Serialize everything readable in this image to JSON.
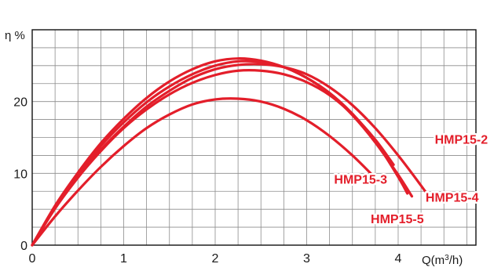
{
  "chart_data": {
    "type": "line",
    "ylabel": "η %",
    "xlabel_main": "Q(m",
    "xlabel_sup": "3",
    "xlabel_end": "/h)",
    "xlim": [
      0,
      4.85
    ],
    "ylim": [
      0,
      30
    ],
    "x_ticks": [
      0,
      1,
      2,
      3,
      4
    ],
    "y_ticks": [
      0,
      10,
      20
    ],
    "x_minor_step": 0.25,
    "y_minor_step": 2.5,
    "grid": true,
    "color": "#e31e2a",
    "series": [
      {
        "name": "HMP15-2",
        "x": [
          0,
          0.25,
          0.5,
          0.75,
          1.0,
          1.25,
          1.5,
          1.75,
          2.0,
          2.25,
          2.5,
          2.75,
          3.0,
          3.25,
          3.5,
          3.75,
          4.0,
          4.25,
          4.35
        ],
        "y": [
          0,
          5.2,
          9.5,
          13.3,
          16.5,
          19.3,
          21.5,
          23.3,
          24.5,
          25.1,
          25.2,
          24.8,
          23.8,
          22.0,
          19.5,
          16.3,
          12.5,
          8.3,
          6.5
        ]
      },
      {
        "name": "HMP15-3",
        "x": [
          0,
          0.25,
          0.5,
          0.75,
          1.0,
          1.25,
          1.5,
          1.75,
          2.0,
          2.25,
          2.5,
          2.75,
          3.0,
          3.25,
          3.5,
          3.75,
          3.95
        ],
        "y": [
          0,
          5.1,
          9.4,
          13.1,
          16.3,
          18.9,
          21.0,
          22.6,
          23.7,
          24.3,
          24.3,
          23.8,
          22.7,
          20.9,
          18.2,
          14.7,
          11.2
        ]
      },
      {
        "name": "HMP15-4",
        "x": [
          0,
          0.25,
          0.5,
          0.75,
          1.0,
          1.25,
          1.5,
          1.75,
          2.0,
          2.25,
          2.5,
          2.75,
          3.0,
          3.25,
          3.5,
          3.75,
          4.0,
          4.15
        ],
        "y": [
          0,
          5.5,
          10.1,
          14.2,
          17.6,
          20.5,
          22.8,
          24.5,
          25.6,
          26.0,
          25.7,
          24.8,
          23.3,
          21.1,
          18.1,
          14.3,
          9.8,
          6.8
        ]
      },
      {
        "name": "HMP15-5",
        "x": [
          0,
          0.25,
          0.5,
          0.75,
          1.0,
          1.25,
          1.5,
          1.75,
          2.0,
          2.25,
          2.5,
          2.75,
          3.0,
          3.25,
          3.5,
          3.75,
          4.0,
          4.1
        ],
        "y": [
          0,
          5.3,
          9.8,
          13.8,
          17.1,
          19.9,
          22.1,
          23.8,
          25.0,
          25.6,
          25.5,
          24.8,
          23.3,
          21.2,
          18.3,
          14.5,
          9.5,
          7.2
        ]
      },
      {
        "name": "",
        "x": [
          0,
          0.25,
          0.5,
          0.75,
          1.0,
          1.25,
          1.5,
          1.75,
          2.0,
          2.25,
          2.5,
          2.75,
          3.0,
          3.25,
          3.5,
          3.7
        ],
        "y": [
          0,
          4.0,
          7.6,
          10.9,
          13.8,
          16.3,
          18.2,
          19.6,
          20.3,
          20.4,
          20.0,
          19.0,
          17.4,
          15.2,
          12.5,
          10.0
        ]
      }
    ],
    "labels": [
      {
        "text": "HMP15-2",
        "x": 4.4,
        "y": 14.8
      },
      {
        "text": "HMP15-3",
        "x": 3.3,
        "y": 9.2
      },
      {
        "text": "HMP15-4",
        "x": 4.3,
        "y": 6.7
      },
      {
        "text": "HMP15-5",
        "x": 3.7,
        "y": 3.7
      }
    ]
  }
}
